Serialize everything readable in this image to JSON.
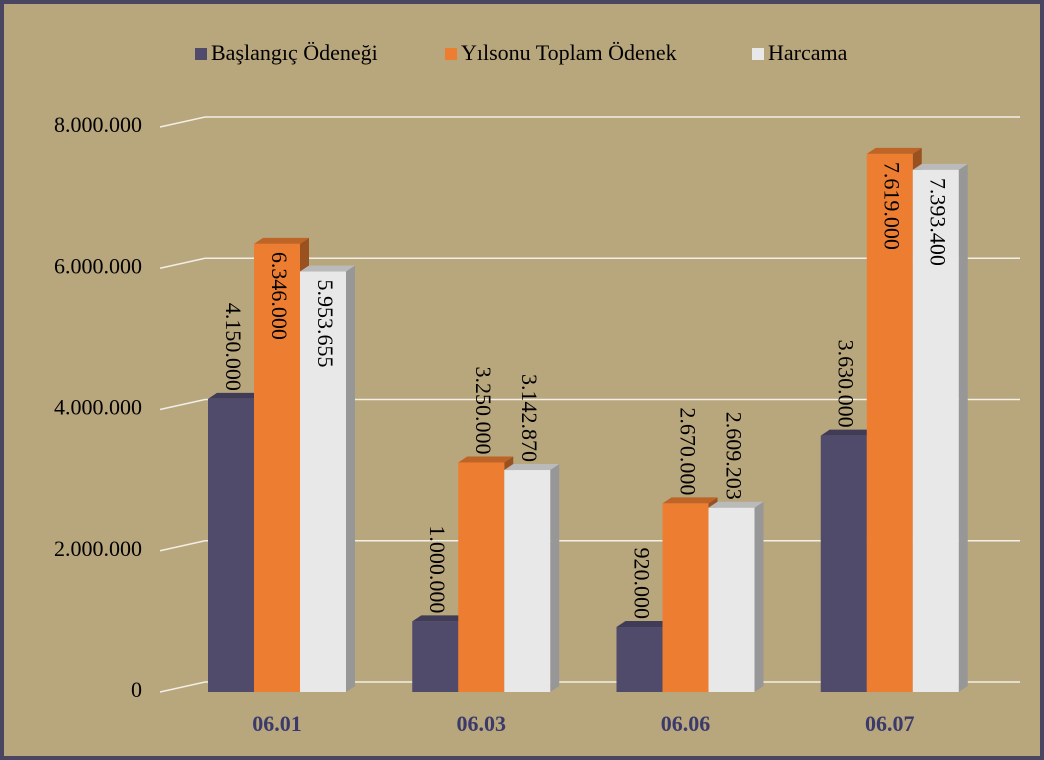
{
  "chart_data": {
    "type": "bar",
    "categories": [
      "06.01",
      "06.03",
      "06.06",
      "06.07"
    ],
    "series": [
      {
        "name": "Başlangıç Ödeneği",
        "color": "#504a6b",
        "values": [
          4150000,
          1000000,
          920000,
          3630000
        ],
        "value_labels": [
          "4.150.000",
          "1.000.000",
          "920.000",
          "3.630.000"
        ]
      },
      {
        "name": "Yılsonu Toplam Ödenek",
        "color": "#ed7d31",
        "values": [
          6346000,
          3250000,
          2670000,
          7619000
        ],
        "value_labels": [
          "6.346.000",
          "3.250.000",
          "2.670.000",
          "7.619.000"
        ]
      },
      {
        "name": "Harcama",
        "color": "#e8e8e8",
        "values": [
          5953655,
          3142870,
          2609203,
          7393400
        ],
        "value_labels": [
          "5.953.655",
          "3.142.870",
          "2.609.203",
          "7.393.400"
        ]
      }
    ],
    "ylim": [
      0,
      8000000
    ],
    "yticks": [
      0,
      {
        "value": 2000000,
        "label": "2.000.000"
      },
      {
        "value": 4000000,
        "label": "4.000.000"
      },
      {
        "value": 6000000,
        "label": "6.000.000"
      },
      {
        "value": 8000000,
        "label": "8.000.000"
      }
    ],
    "grid": true,
    "legend": "top"
  }
}
